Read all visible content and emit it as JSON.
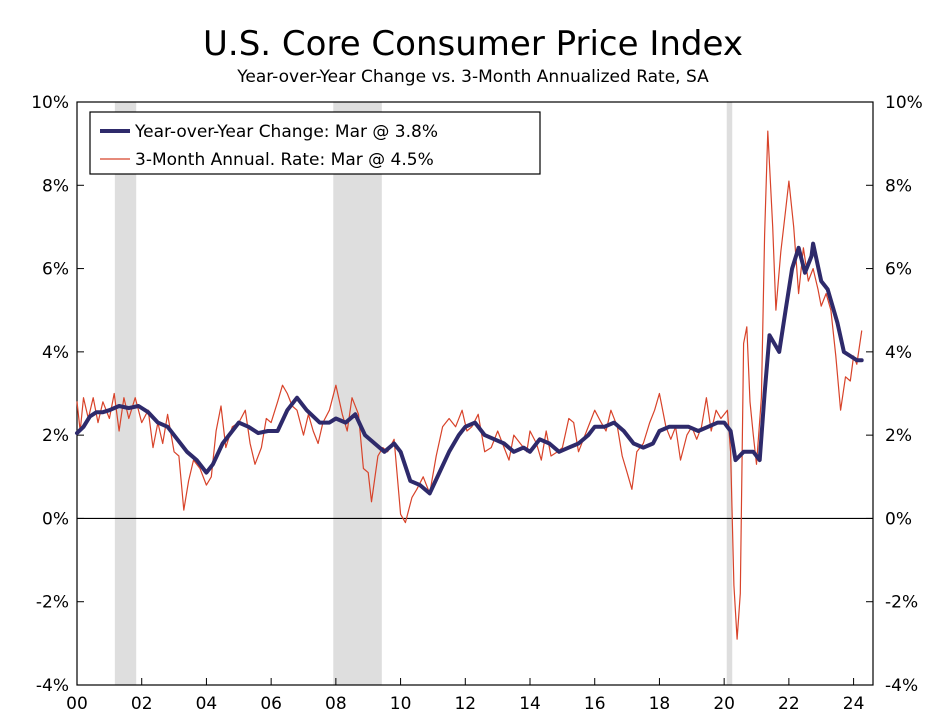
{
  "chart_data": {
    "type": "line",
    "title": "U.S. Core Consumer Price Index",
    "subtitle": "Year-over-Year Change vs. 3-Month Annualized Rate, SA",
    "xlabel": "",
    "ylabel": "",
    "xlim": [
      2000.0,
      2024.6
    ],
    "ylim": [
      -4,
      10
    ],
    "y_tick_labels": [
      "10%",
      "8%",
      "6%",
      "4%",
      "2%",
      "0%",
      "-2%",
      "-4%"
    ],
    "y_tick_values": [
      10,
      8,
      6,
      4,
      2,
      0,
      -2,
      -4
    ],
    "x_tick_labels": [
      "00",
      "02",
      "04",
      "06",
      "08",
      "10",
      "12",
      "14",
      "16",
      "18",
      "20",
      "22",
      "24"
    ],
    "x_tick_values": [
      2000,
      2002,
      2004,
      2006,
      2008,
      2010,
      2012,
      2014,
      2016,
      2018,
      2020,
      2022,
      2024
    ],
    "recessions": [
      [
        2001.17,
        2001.83
      ],
      [
        2007.92,
        2009.42
      ],
      [
        2020.08,
        2020.25
      ]
    ],
    "zero_line": true,
    "grid": false,
    "legend_position": "top-left",
    "series": [
      {
        "name": "Year-over-Year Change: Mar @ 3.8%",
        "color": "#2e2a6b",
        "style": "thick",
        "points": [
          [
            2000.0,
            2.05
          ],
          [
            2000.2,
            2.2
          ],
          [
            2000.4,
            2.45
          ],
          [
            2000.6,
            2.55
          ],
          [
            2000.8,
            2.55
          ],
          [
            2001.0,
            2.6
          ],
          [
            2001.3,
            2.7
          ],
          [
            2001.6,
            2.65
          ],
          [
            2001.9,
            2.7
          ],
          [
            2002.2,
            2.55
          ],
          [
            2002.5,
            2.3
          ],
          [
            2002.8,
            2.2
          ],
          [
            2003.1,
            1.9
          ],
          [
            2003.4,
            1.6
          ],
          [
            2003.7,
            1.4
          ],
          [
            2004.0,
            1.1
          ],
          [
            2004.2,
            1.3
          ],
          [
            2004.5,
            1.8
          ],
          [
            2004.8,
            2.1
          ],
          [
            2005.0,
            2.3
          ],
          [
            2005.3,
            2.2
          ],
          [
            2005.6,
            2.05
          ],
          [
            2005.9,
            2.1
          ],
          [
            2006.2,
            2.1
          ],
          [
            2006.5,
            2.6
          ],
          [
            2006.8,
            2.9
          ],
          [
            2007.1,
            2.6
          ],
          [
            2007.5,
            2.3
          ],
          [
            2007.8,
            2.3
          ],
          [
            2008.0,
            2.4
          ],
          [
            2008.3,
            2.3
          ],
          [
            2008.6,
            2.5
          ],
          [
            2008.9,
            2.0
          ],
          [
            2009.2,
            1.8
          ],
          [
            2009.5,
            1.6
          ],
          [
            2009.8,
            1.8
          ],
          [
            2010.0,
            1.6
          ],
          [
            2010.3,
            0.9
          ],
          [
            2010.6,
            0.8
          ],
          [
            2010.9,
            0.6
          ],
          [
            2011.2,
            1.1
          ],
          [
            2011.5,
            1.6
          ],
          [
            2011.8,
            2.0
          ],
          [
            2012.0,
            2.2
          ],
          [
            2012.3,
            2.3
          ],
          [
            2012.6,
            2.0
          ],
          [
            2012.9,
            1.9
          ],
          [
            2013.2,
            1.8
          ],
          [
            2013.5,
            1.6
          ],
          [
            2013.8,
            1.7
          ],
          [
            2014.0,
            1.6
          ],
          [
            2014.3,
            1.9
          ],
          [
            2014.6,
            1.8
          ],
          [
            2014.9,
            1.6
          ],
          [
            2015.2,
            1.7
          ],
          [
            2015.5,
            1.8
          ],
          [
            2015.8,
            2.0
          ],
          [
            2016.0,
            2.2
          ],
          [
            2016.3,
            2.2
          ],
          [
            2016.6,
            2.3
          ],
          [
            2016.9,
            2.1
          ],
          [
            2017.2,
            1.8
          ],
          [
            2017.5,
            1.7
          ],
          [
            2017.8,
            1.8
          ],
          [
            2018.0,
            2.1
          ],
          [
            2018.3,
            2.2
          ],
          [
            2018.6,
            2.2
          ],
          [
            2018.9,
            2.2
          ],
          [
            2019.2,
            2.1
          ],
          [
            2019.5,
            2.2
          ],
          [
            2019.8,
            2.3
          ],
          [
            2020.0,
            2.3
          ],
          [
            2020.2,
            2.1
          ],
          [
            2020.35,
            1.4
          ],
          [
            2020.6,
            1.6
          ],
          [
            2020.9,
            1.6
          ],
          [
            2021.1,
            1.4
          ],
          [
            2021.25,
            3.0
          ],
          [
            2021.4,
            4.4
          ],
          [
            2021.7,
            4.0
          ],
          [
            2021.9,
            5.0
          ],
          [
            2022.1,
            6.0
          ],
          [
            2022.3,
            6.5
          ],
          [
            2022.5,
            5.9
          ],
          [
            2022.7,
            6.3
          ],
          [
            2022.75,
            6.6
          ],
          [
            2023.0,
            5.7
          ],
          [
            2023.2,
            5.5
          ],
          [
            2023.5,
            4.7
          ],
          [
            2023.7,
            4.0
          ],
          [
            2023.9,
            3.9
          ],
          [
            2024.1,
            3.8
          ],
          [
            2024.25,
            3.8
          ]
        ]
      },
      {
        "name": "3-Month Annual. Rate: Mar @ 4.5%",
        "color": "#d8432a",
        "style": "thin",
        "points": [
          [
            2000.0,
            2.8
          ],
          [
            2000.1,
            2.1
          ],
          [
            2000.2,
            2.9
          ],
          [
            2000.35,
            2.4
          ],
          [
            2000.5,
            2.9
          ],
          [
            2000.65,
            2.3
          ],
          [
            2000.8,
            2.8
          ],
          [
            2001.0,
            2.4
          ],
          [
            2001.15,
            3.0
          ],
          [
            2001.3,
            2.1
          ],
          [
            2001.45,
            2.9
          ],
          [
            2001.6,
            2.4
          ],
          [
            2001.8,
            2.9
          ],
          [
            2002.0,
            2.3
          ],
          [
            2002.2,
            2.6
          ],
          [
            2002.35,
            1.7
          ],
          [
            2002.5,
            2.3
          ],
          [
            2002.65,
            1.8
          ],
          [
            2002.8,
            2.5
          ],
          [
            2003.0,
            1.6
          ],
          [
            2003.15,
            1.5
          ],
          [
            2003.3,
            0.2
          ],
          [
            2003.45,
            0.9
          ],
          [
            2003.6,
            1.4
          ],
          [
            2003.8,
            1.2
          ],
          [
            2004.0,
            0.8
          ],
          [
            2004.15,
            1.0
          ],
          [
            2004.3,
            2.1
          ],
          [
            2004.45,
            2.7
          ],
          [
            2004.6,
            1.7
          ],
          [
            2004.8,
            2.2
          ],
          [
            2005.0,
            2.3
          ],
          [
            2005.2,
            2.6
          ],
          [
            2005.35,
            1.8
          ],
          [
            2005.5,
            1.3
          ],
          [
            2005.7,
            1.7
          ],
          [
            2005.85,
            2.4
          ],
          [
            2006.0,
            2.3
          ],
          [
            2006.2,
            2.8
          ],
          [
            2006.35,
            3.2
          ],
          [
            2006.5,
            3.0
          ],
          [
            2006.65,
            2.7
          ],
          [
            2006.8,
            2.6
          ],
          [
            2007.0,
            2.0
          ],
          [
            2007.15,
            2.5
          ],
          [
            2007.3,
            2.1
          ],
          [
            2007.45,
            1.8
          ],
          [
            2007.6,
            2.3
          ],
          [
            2007.8,
            2.6
          ],
          [
            2008.0,
            3.2
          ],
          [
            2008.2,
            2.5
          ],
          [
            2008.35,
            2.1
          ],
          [
            2008.5,
            2.9
          ],
          [
            2008.7,
            2.5
          ],
          [
            2008.85,
            1.2
          ],
          [
            2009.0,
            1.1
          ],
          [
            2009.1,
            0.4
          ],
          [
            2009.3,
            1.5
          ],
          [
            2009.45,
            1.7
          ],
          [
            2009.6,
            1.6
          ],
          [
            2009.8,
            1.9
          ],
          [
            2010.0,
            0.1
          ],
          [
            2010.15,
            -0.1
          ],
          [
            2010.35,
            0.5
          ],
          [
            2010.5,
            0.7
          ],
          [
            2010.7,
            1.0
          ],
          [
            2010.9,
            0.6
          ],
          [
            2011.1,
            1.5
          ],
          [
            2011.3,
            2.2
          ],
          [
            2011.5,
            2.4
          ],
          [
            2011.7,
            2.2
          ],
          [
            2011.9,
            2.6
          ],
          [
            2012.05,
            2.1
          ],
          [
            2012.2,
            2.2
          ],
          [
            2012.4,
            2.5
          ],
          [
            2012.6,
            1.6
          ],
          [
            2012.8,
            1.7
          ],
          [
            2013.0,
            2.1
          ],
          [
            2013.2,
            1.7
          ],
          [
            2013.35,
            1.4
          ],
          [
            2013.5,
            2.0
          ],
          [
            2013.7,
            1.8
          ],
          [
            2013.9,
            1.6
          ],
          [
            2014.0,
            2.1
          ],
          [
            2014.2,
            1.8
          ],
          [
            2014.35,
            1.4
          ],
          [
            2014.5,
            2.1
          ],
          [
            2014.65,
            1.5
          ],
          [
            2014.85,
            1.6
          ],
          [
            2015.0,
            1.7
          ],
          [
            2015.2,
            2.4
          ],
          [
            2015.35,
            2.3
          ],
          [
            2015.5,
            1.6
          ],
          [
            2015.7,
            2.0
          ],
          [
            2015.9,
            2.4
          ],
          [
            2016.0,
            2.6
          ],
          [
            2016.2,
            2.3
          ],
          [
            2016.35,
            2.1
          ],
          [
            2016.5,
            2.6
          ],
          [
            2016.7,
            2.2
          ],
          [
            2016.85,
            1.5
          ],
          [
            2017.0,
            1.1
          ],
          [
            2017.15,
            0.7
          ],
          [
            2017.3,
            1.6
          ],
          [
            2017.5,
            1.8
          ],
          [
            2017.7,
            2.3
          ],
          [
            2017.85,
            2.6
          ],
          [
            2018.0,
            3.0
          ],
          [
            2018.2,
            2.2
          ],
          [
            2018.35,
            1.9
          ],
          [
            2018.5,
            2.2
          ],
          [
            2018.65,
            1.4
          ],
          [
            2018.85,
            2.0
          ],
          [
            2019.0,
            2.2
          ],
          [
            2019.15,
            1.9
          ],
          [
            2019.3,
            2.2
          ],
          [
            2019.45,
            2.9
          ],
          [
            2019.6,
            2.1
          ],
          [
            2019.75,
            2.6
          ],
          [
            2019.9,
            2.4
          ],
          [
            2020.1,
            2.6
          ],
          [
            2020.2,
            1.6
          ],
          [
            2020.3,
            -1.6
          ],
          [
            2020.4,
            -2.9
          ],
          [
            2020.5,
            -1.8
          ],
          [
            2020.6,
            4.2
          ],
          [
            2020.7,
            4.6
          ],
          [
            2020.8,
            2.8
          ],
          [
            2020.9,
            2.0
          ],
          [
            2021.0,
            1.3
          ],
          [
            2021.15,
            2.9
          ],
          [
            2021.25,
            6.8
          ],
          [
            2021.35,
            9.3
          ],
          [
            2021.5,
            7.0
          ],
          [
            2021.6,
            5.0
          ],
          [
            2021.75,
            6.4
          ],
          [
            2021.9,
            7.4
          ],
          [
            2022.0,
            8.1
          ],
          [
            2022.15,
            7.0
          ],
          [
            2022.3,
            5.4
          ],
          [
            2022.45,
            6.5
          ],
          [
            2022.6,
            5.7
          ],
          [
            2022.75,
            6.0
          ],
          [
            2022.9,
            5.5
          ],
          [
            2023.0,
            5.1
          ],
          [
            2023.15,
            5.4
          ],
          [
            2023.3,
            5.0
          ],
          [
            2023.45,
            3.9
          ],
          [
            2023.6,
            2.6
          ],
          [
            2023.75,
            3.4
          ],
          [
            2023.9,
            3.3
          ],
          [
            2024.0,
            3.9
          ],
          [
            2024.1,
            3.7
          ],
          [
            2024.25,
            4.5
          ]
        ]
      }
    ]
  }
}
